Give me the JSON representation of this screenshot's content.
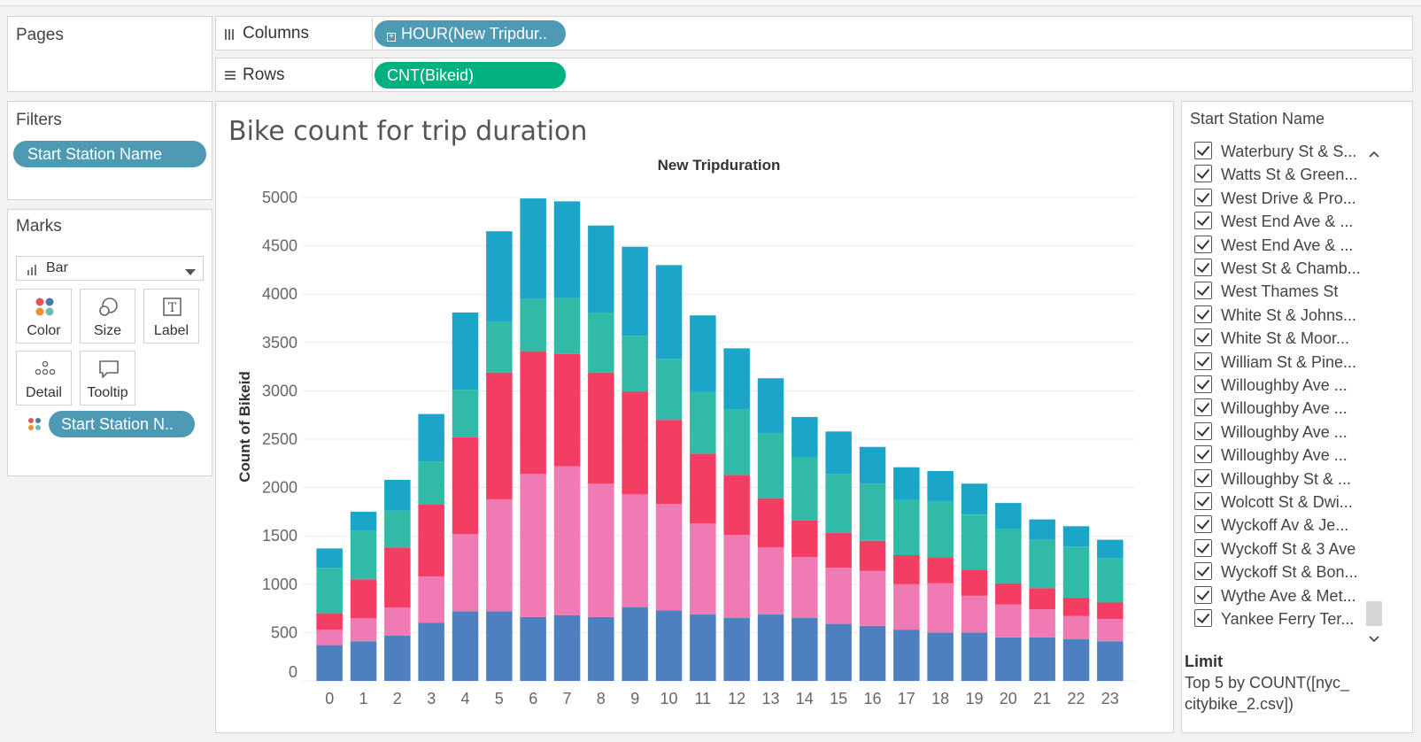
{
  "pages": {
    "title": "Pages"
  },
  "filters": {
    "title": "Filters",
    "pill": "Start Station Name"
  },
  "marks": {
    "title": "Marks",
    "type": "Bar",
    "buttons": {
      "color": "Color",
      "size": "Size",
      "label": "Label",
      "detail": "Detail",
      "tooltip": "Tooltip"
    },
    "detail_pill": "Start Station N.."
  },
  "shelves": {
    "columns_label": "Columns",
    "columns_pill": "HOUR(New Tripdur..",
    "rows_label": "Rows",
    "rows_pill": "CNT(Bikeid)"
  },
  "legend": {
    "title": "Start Station Name",
    "items": [
      "Waterbury St & S...",
      "Watts St & Green...",
      "West Drive & Pro...",
      "West End Ave & ...",
      "West End Ave & ...",
      "West St & Chamb...",
      "West Thames St",
      "White St & Johns...",
      "White St & Moor...",
      "William St & Pine...",
      "Willoughby Ave ...",
      "Willoughby Ave ...",
      "Willoughby Ave ...",
      "Willoughby Ave ...",
      "Willoughby St & ...",
      "Wolcott St & Dwi...",
      "Wyckoff Av & Je...",
      "Wyckoff St & 3 Ave",
      "Wyckoff St & Bon...",
      "Wythe Ave & Met...",
      "Yankee Ferry Ter..."
    ],
    "limit_title": "Limit",
    "limit_line1": "Top 5 by COUNT([nyc_",
    "limit_line2": "citybike_2.csv])"
  },
  "colors": {
    "seg1": "#4e7fbe",
    "seg2": "#f07ab4",
    "seg3": "#f33d63",
    "seg4": "#30bba6",
    "seg5": "#1ba5c8",
    "pill_blue": "#4e99b4",
    "pill_green": "#00b180"
  },
  "chart_data": {
    "type": "bar",
    "stacked": true,
    "title": "Bike count for trip duration",
    "xlabel": "New Tripduration",
    "ylabel": "Count of Bikeid",
    "ylim": [
      0,
      5000
    ],
    "y_ticks": [
      0,
      500,
      1000,
      1500,
      2000,
      2500,
      3000,
      3500,
      4000,
      4500,
      5000
    ],
    "categories": [
      "0",
      "1",
      "2",
      "3",
      "4",
      "5",
      "6",
      "7",
      "8",
      "9",
      "10",
      "11",
      "12",
      "13",
      "14",
      "15",
      "16",
      "17",
      "18",
      "19",
      "20",
      "21",
      "22",
      "23"
    ],
    "series": [
      {
        "values": [
          370,
          410,
          470,
          600,
          720,
          720,
          660,
          680,
          660,
          760,
          730,
          690,
          650,
          690,
          650,
          590,
          570,
          530,
          500,
          500,
          450,
          450,
          430,
          410
        ]
      },
      {
        "values": [
          160,
          240,
          290,
          480,
          800,
          1160,
          1480,
          1540,
          1380,
          1170,
          1100,
          940,
          860,
          690,
          630,
          580,
          570,
          470,
          510,
          380,
          340,
          290,
          240,
          230
        ]
      },
      {
        "values": [
          170,
          400,
          620,
          750,
          1000,
          1310,
          1270,
          1160,
          1150,
          1060,
          870,
          720,
          620,
          510,
          380,
          360,
          310,
          300,
          270,
          270,
          220,
          220,
          190,
          170
        ]
      },
      {
        "values": [
          470,
          500,
          380,
          440,
          490,
          520,
          540,
          580,
          620,
          580,
          630,
          640,
          680,
          670,
          650,
          610,
          590,
          570,
          580,
          570,
          560,
          500,
          530,
          460
        ]
      },
      {
        "values": [
          200,
          200,
          320,
          490,
          800,
          940,
          1040,
          1000,
          900,
          920,
          970,
          790,
          630,
          570,
          420,
          440,
          380,
          340,
          310,
          320,
          270,
          210,
          210,
          190
        ]
      }
    ]
  }
}
